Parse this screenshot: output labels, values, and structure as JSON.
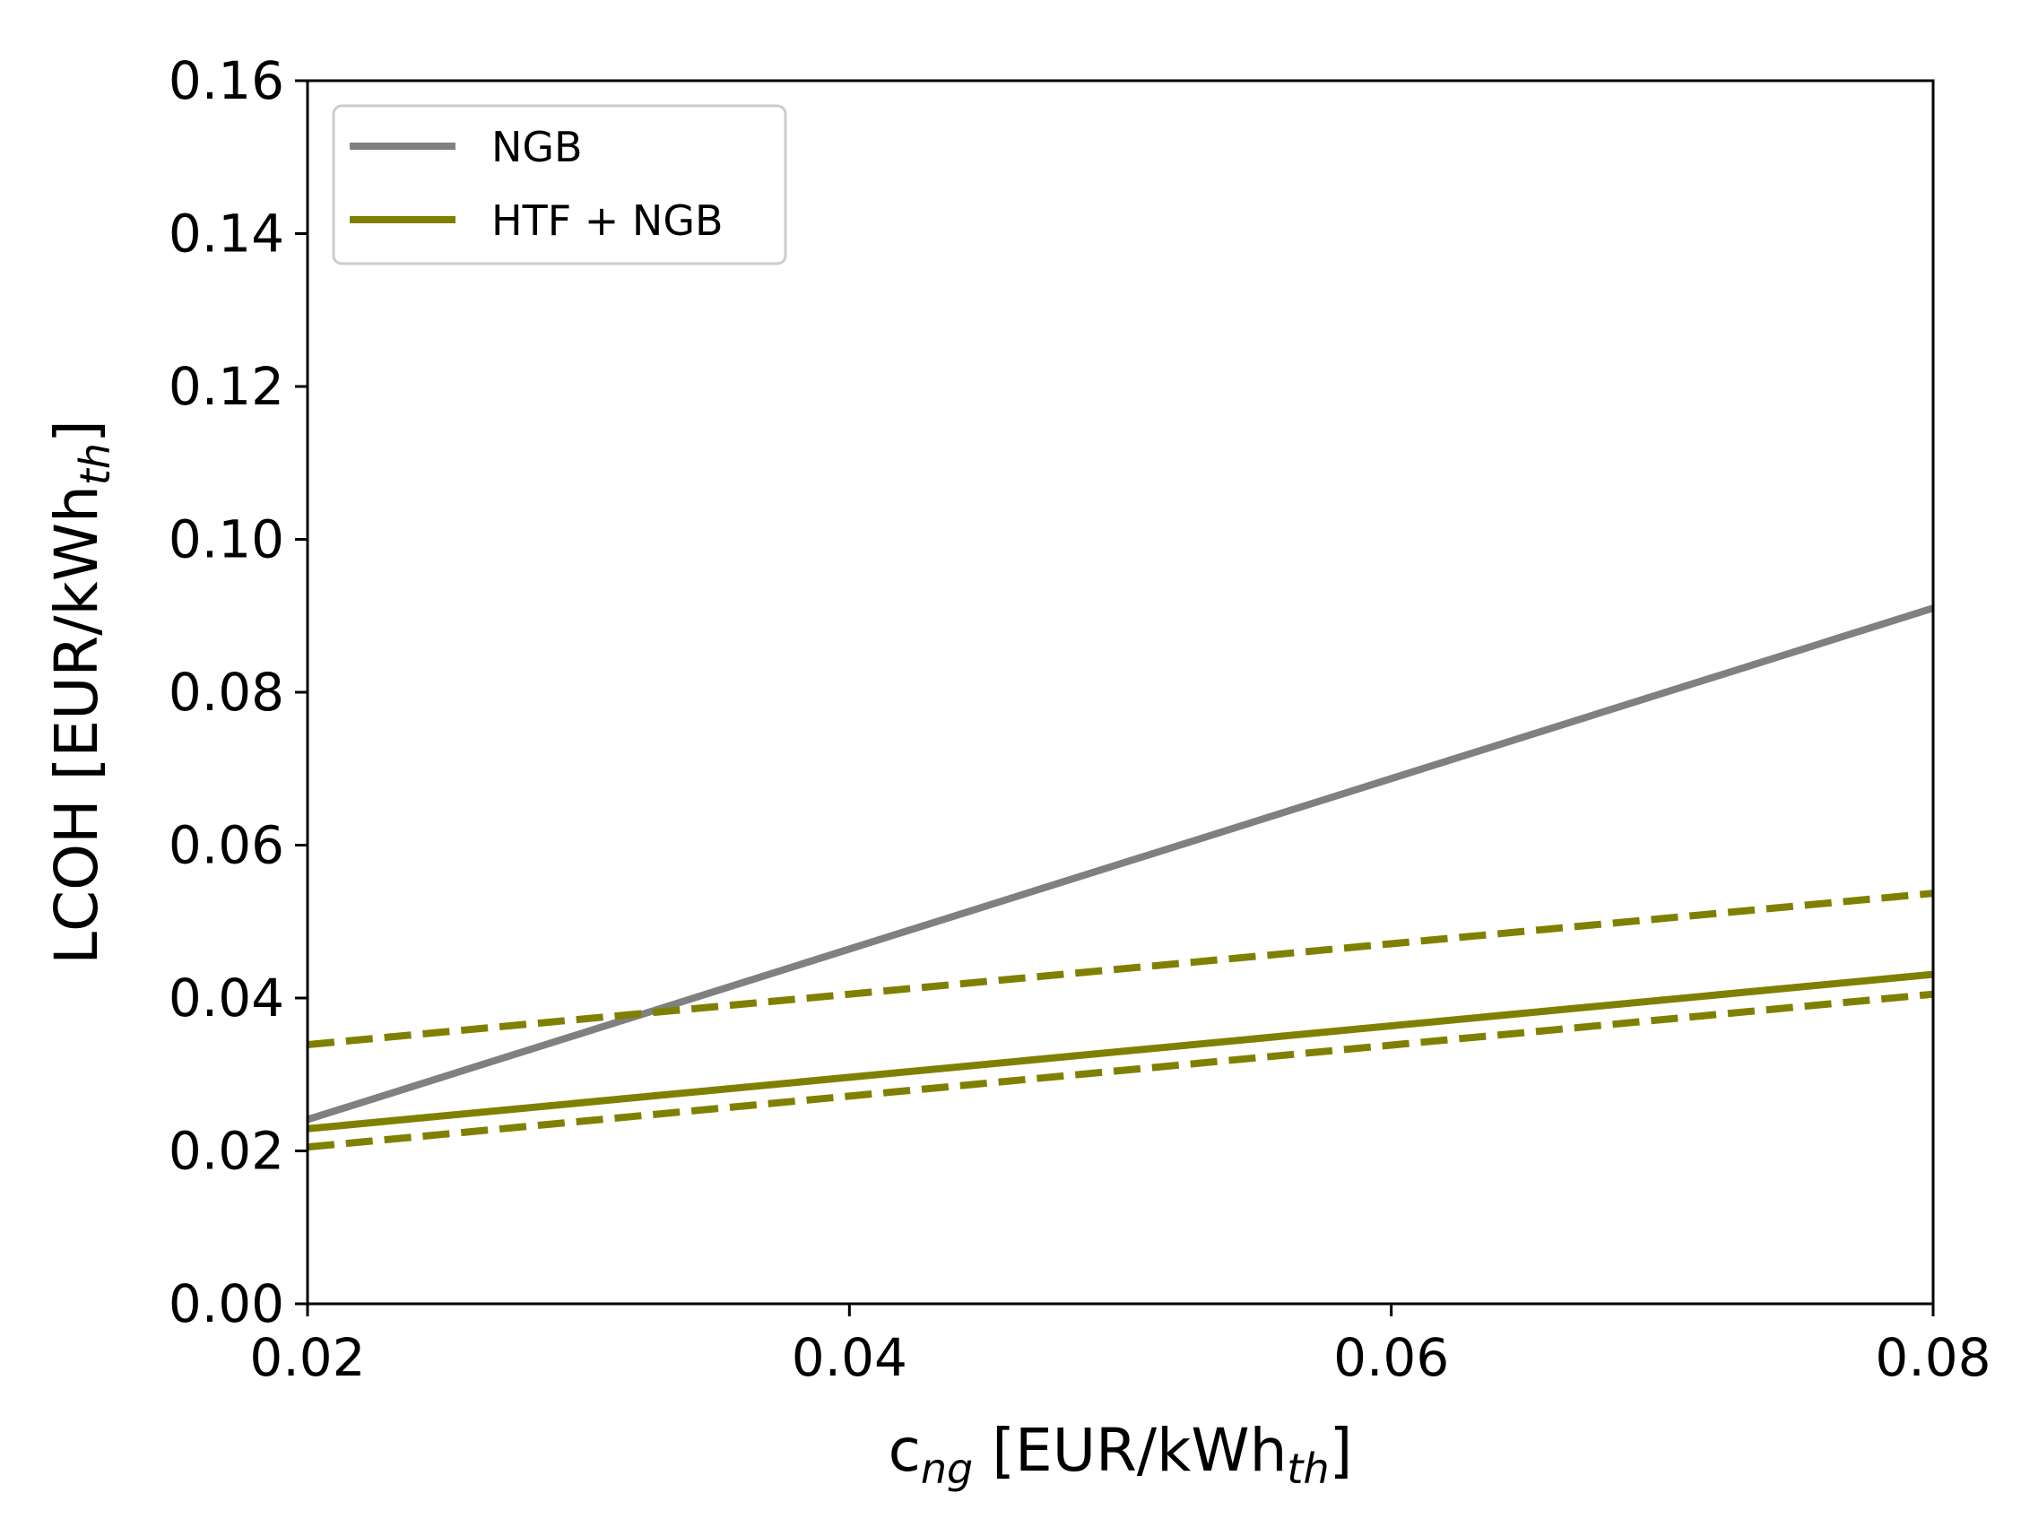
{
  "chart_data": {
    "type": "line",
    "xlabel": {
      "main": "c",
      "sub": "ng",
      "unit_prefix": " [EUR/kWh",
      "unit_sub": "th",
      "unit_suffix": "]"
    },
    "ylabel": {
      "main": "LCOH [EUR/kWh",
      "sub": "th",
      "suffix": "]"
    },
    "xlim": [
      0.02,
      0.08
    ],
    "ylim": [
      0.0,
      0.16
    ],
    "xticks": [
      "0.02",
      "0.04",
      "0.06",
      "0.08"
    ],
    "yticks": [
      "0.00",
      "0.02",
      "0.04",
      "0.06",
      "0.08",
      "0.10",
      "0.12",
      "0.14",
      "0.16"
    ],
    "grid": false,
    "legend_placement": "top-left",
    "series": [
      {
        "name": "NGB",
        "color": "#808080",
        "style": "solid",
        "in_legend": true,
        "x": [
          0.02,
          0.08
        ],
        "y": [
          0.0241,
          0.091
        ]
      },
      {
        "name": "HTF + NGB",
        "color": "#808000",
        "style": "solid",
        "in_legend": true,
        "x": [
          0.02,
          0.08
        ],
        "y": [
          0.0229,
          0.0431
        ]
      },
      {
        "color": "#808000",
        "style": "dashed",
        "in_legend": false,
        "x": [
          0.02,
          0.08
        ],
        "y": [
          0.0339,
          0.0537
        ]
      },
      {
        "color": "#808000",
        "style": "dashed",
        "in_legend": false,
        "x": [
          0.02,
          0.08
        ],
        "y": [
          0.0205,
          0.0405
        ]
      }
    ]
  }
}
